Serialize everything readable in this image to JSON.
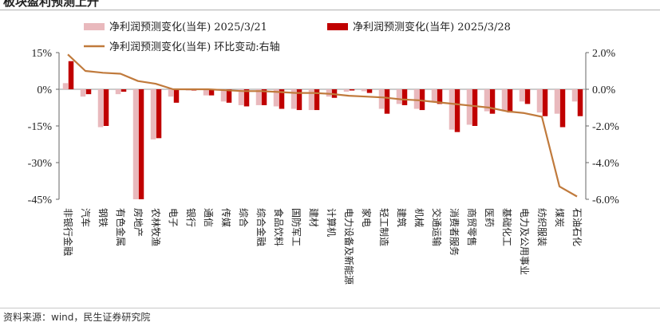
{
  "header": {
    "title": "板块盈利预测上升"
  },
  "footer": {
    "source": "资料来源：wind，民生证券研究院"
  },
  "chart_data": {
    "type": "bar",
    "categories": [
      "非银行金融",
      "汽车",
      "钢铁",
      "有色金属",
      "房地产",
      "农林牧渔",
      "电子",
      "银行",
      "通信",
      "传媒",
      "综合",
      "综合金融",
      "食品饮料",
      "国防军工",
      "建材",
      "计算机",
      "电力设备及新能源",
      "家电",
      "轻工制造",
      "建筑",
      "机械",
      "交通运输",
      "消费者服务",
      "商贸零售",
      "医药",
      "基础化工",
      "电力及公用事业",
      "纺织服装",
      "煤炭",
      "石油石化"
    ],
    "series": [
      {
        "name": "净利润预测变化(当年) 2025/3/21",
        "kind": "bar",
        "axis": "left",
        "color": "#e9b9bd",
        "values": [
          2.5,
          -3.0,
          -15.5,
          -2.0,
          -45.0,
          -20.5,
          -3.0,
          -0.5,
          -2.5,
          -5.0,
          -6.5,
          -6.5,
          -7.0,
          -8.0,
          -8.5,
          -3.0,
          -1.0,
          -0.8,
          -8.0,
          -6.0,
          -8.0,
          -5.0,
          -16.5,
          -14.5,
          -9.0,
          -9.0,
          -5.0,
          -9.5,
          -10.0,
          -5.0
        ]
      },
      {
        "name": "净利润预测变化(当年) 2025/3/28",
        "kind": "bar",
        "axis": "left",
        "color": "#c00000",
        "values": [
          11.5,
          -2.0,
          -15.0,
          -1.0,
          -45.0,
          -20.0,
          -5.5,
          -0.5,
          -2.5,
          -5.5,
          -7.0,
          -6.5,
          -8.0,
          -8.5,
          -8.5,
          -3.5,
          -0.5,
          -1.5,
          -10.0,
          -6.5,
          -8.5,
          -6.0,
          -17.5,
          -15.0,
          -10.0,
          -9.5,
          -6.0,
          -11.0,
          -15.5,
          -11.0
        ]
      },
      {
        "name": "净利润预测变化(当年) 环比变动:右轴",
        "kind": "line",
        "axis": "right",
        "color": "#c07a3c",
        "values": [
          1.9,
          1.0,
          0.9,
          0.85,
          0.45,
          0.3,
          0.0,
          0.0,
          0.0,
          -0.05,
          -0.1,
          -0.1,
          -0.15,
          -0.2,
          -0.2,
          -0.25,
          -0.35,
          -0.4,
          -0.45,
          -0.55,
          -0.6,
          -0.7,
          -0.8,
          -0.9,
          -1.0,
          -1.2,
          -1.3,
          -1.5,
          -5.3,
          -5.85
        ]
      }
    ],
    "y_left": {
      "ticks": [
        15,
        0,
        -15,
        -30,
        -45
      ],
      "tick_labels": [
        "15%",
        "0%",
        "-15%",
        "-30%",
        "-45%"
      ],
      "range": [
        -45,
        15
      ]
    },
    "y_right": {
      "ticks": [
        2,
        0,
        -2,
        -4,
        -6
      ],
      "tick_labels": [
        "2.0%",
        "0.0%",
        "-2.0%",
        "-4.0%",
        "-6.0%"
      ],
      "range": [
        -6,
        2
      ]
    },
    "grid": false,
    "legend_position": "top"
  }
}
